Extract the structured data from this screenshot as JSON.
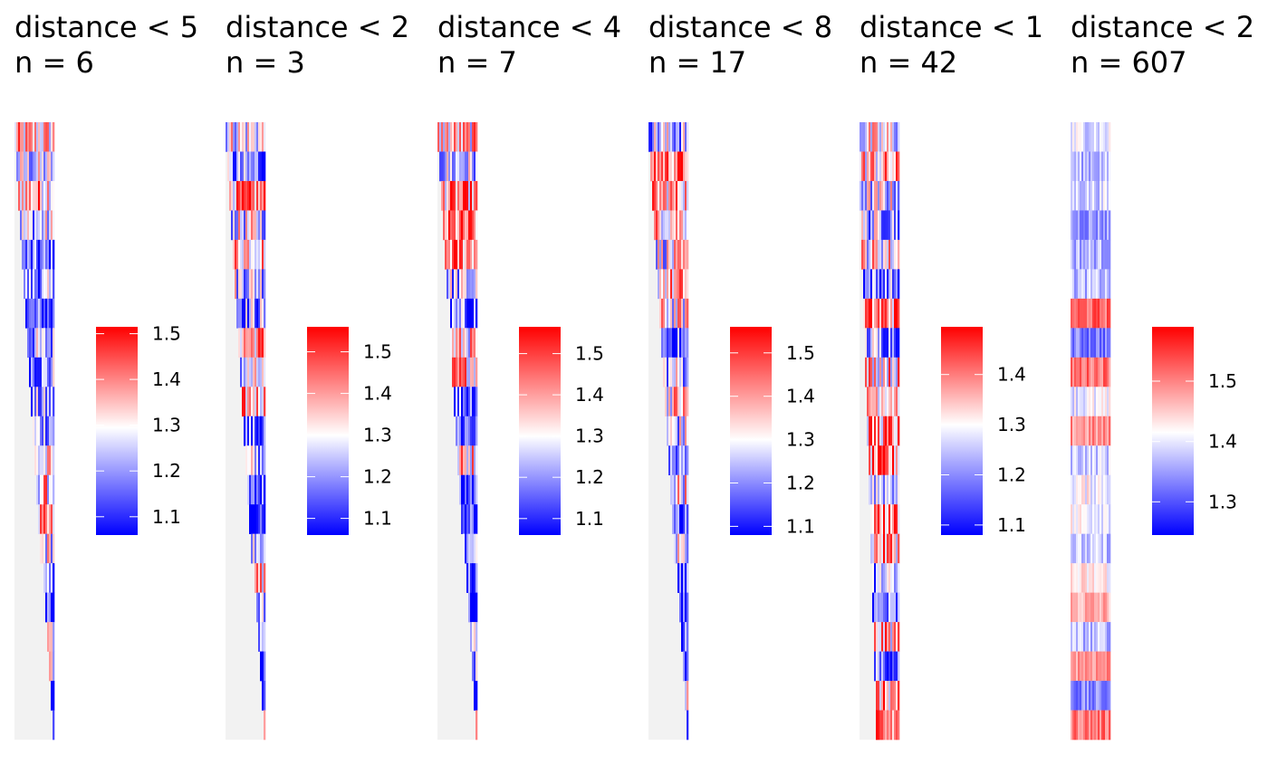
{
  "chart_data": [
    {
      "type": "heatmap",
      "title": "distance < 5",
      "subtitle": "n = 6",
      "legend": {
        "ticks": [
          "1.1",
          "1.2",
          "1.3",
          "1.4",
          "1.5"
        ],
        "tick_values": [
          1.1,
          1.2,
          1.3,
          1.4,
          1.5
        ],
        "min": 1.06,
        "max": 1.515,
        "mid": 1.295
      },
      "colors": {
        "low": "#0000ff",
        "mid": "#ffffff",
        "high": "#ff0000",
        "na": "#f2f2f2"
      },
      "layout": "staircase"
    },
    {
      "type": "heatmap",
      "title": "distance < 2",
      "subtitle": "n = 3",
      "legend": {
        "ticks": [
          "1.1",
          "1.2",
          "1.3",
          "1.4",
          "1.5"
        ],
        "tick_values": [
          1.1,
          1.2,
          1.3,
          1.4,
          1.5
        ],
        "min": 1.06,
        "max": 1.56,
        "mid": 1.3
      },
      "colors": {
        "low": "#0000ff",
        "mid": "#ffffff",
        "high": "#ff0000",
        "na": "#f2f2f2"
      },
      "layout": "staircase"
    },
    {
      "type": "heatmap",
      "title": "distance < 4",
      "subtitle": "n = 7",
      "legend": {
        "ticks": [
          "1.1",
          "1.2",
          "1.3",
          "1.4",
          "1.5"
        ],
        "tick_values": [
          1.1,
          1.2,
          1.3,
          1.4,
          1.5
        ],
        "min": 1.06,
        "max": 1.565,
        "mid": 1.3
      },
      "colors": {
        "low": "#0000ff",
        "mid": "#ffffff",
        "high": "#ff0000",
        "na": "#f2f2f2"
      },
      "layout": "staircase"
    },
    {
      "type": "heatmap",
      "title": "distance < 8",
      "subtitle": "n = 17",
      "legend": {
        "ticks": [
          "1.1",
          "1.2",
          "1.3",
          "1.4",
          "1.5"
        ],
        "tick_values": [
          1.1,
          1.2,
          1.3,
          1.4,
          1.5
        ],
        "min": 1.08,
        "max": 1.56,
        "mid": 1.3
      },
      "colors": {
        "low": "#0000ff",
        "mid": "#ffffff",
        "high": "#ff0000",
        "na": "#f2f2f2"
      },
      "layout": "staircase"
    },
    {
      "type": "heatmap",
      "title": "distance < 1",
      "subtitle": "n = 42",
      "legend": {
        "ticks": [
          "1.1",
          "1.2",
          "1.3",
          "1.4"
        ],
        "tick_values": [
          1.1,
          1.2,
          1.3,
          1.4
        ],
        "min": 1.08,
        "max": 1.495,
        "mid": 1.3
      },
      "colors": {
        "low": "#0000ff",
        "mid": "#ffffff",
        "high": "#ff0000",
        "na": "#f2f2f2"
      },
      "layout": "steep-staircase"
    },
    {
      "type": "heatmap",
      "title": "distance < 2",
      "subtitle": "n = 607",
      "legend": {
        "ticks": [
          "1.3",
          "1.4",
          "1.5"
        ],
        "tick_values": [
          1.3,
          1.4,
          1.5
        ],
        "min": 1.245,
        "max": 1.59,
        "mid": 1.415
      },
      "colors": {
        "low": "#0000ff",
        "mid": "#ffffff",
        "high": "#ff0000",
        "na": "#f2f2f2"
      },
      "layout": "full"
    }
  ]
}
